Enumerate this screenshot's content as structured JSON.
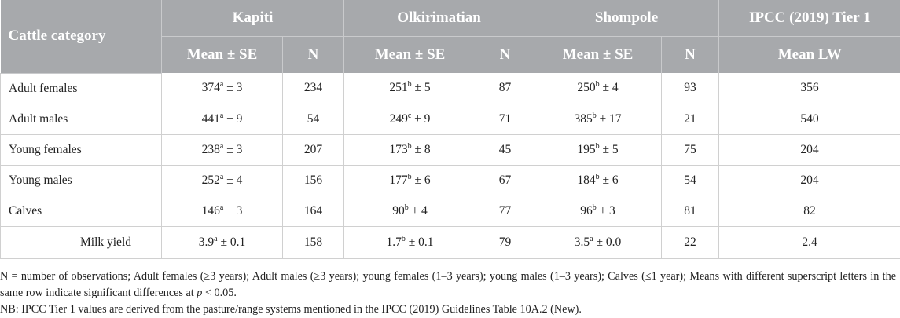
{
  "header": {
    "col_category": "Cattle category",
    "groups": [
      "Kapiti",
      "Olkirimatian",
      "Shompole",
      "IPCC (2019) Tier 1"
    ],
    "sub_mean_se": "Mean ± SE",
    "sub_n": "N",
    "sub_mean_lw": "Mean LW"
  },
  "rows": [
    {
      "category": "Adult females",
      "k_val": "374",
      "k_sup": "a",
      "k_se": " ± 3",
      "k_n": "234",
      "o_val": "251",
      "o_sup": "b",
      "o_se": " ± 5",
      "o_n": "87",
      "s_val": "250",
      "s_sup": "b",
      "s_se": " ± 4",
      "s_n": "93",
      "ipcc": "356"
    },
    {
      "category": "Adult males",
      "k_val": "441",
      "k_sup": "a",
      "k_se": " ± 9",
      "k_n": "54",
      "o_val": "249",
      "o_sup": "c",
      "o_se": " ± 9",
      "o_n": "71",
      "s_val": "385",
      "s_sup": "b",
      "s_se": " ± 17",
      "s_n": "21",
      "ipcc": "540"
    },
    {
      "category": "Young females",
      "k_val": "238",
      "k_sup": "a",
      "k_se": " ± 3",
      "k_n": "207",
      "o_val": "173",
      "o_sup": "b",
      "o_se": " ± 8",
      "o_n": "45",
      "s_val": "195",
      "s_sup": "b",
      "s_se": " ± 5",
      "s_n": "75",
      "ipcc": "204"
    },
    {
      "category": "Young males",
      "k_val": "252",
      "k_sup": "a",
      "k_se": " ± 4",
      "k_n": "156",
      "o_val": "177",
      "o_sup": "b",
      "o_se": " ± 6",
      "o_n": "67",
      "s_val": "184",
      "s_sup": "b",
      "s_se": " ± 6",
      "s_n": "54",
      "ipcc": "204"
    },
    {
      "category": "Calves",
      "k_val": "146",
      "k_sup": "a",
      "k_se": " ± 3",
      "k_n": "164",
      "o_val": "90",
      "o_sup": "b",
      "o_se": " ± 4",
      "o_n": "77",
      "s_val": "96",
      "s_sup": "b",
      "s_se": " ± 3",
      "s_n": "81",
      "ipcc": "82"
    },
    {
      "category": "Milk yield",
      "k_val": "3.9",
      "k_sup": "a",
      "k_se": " ± 0.1",
      "k_n": "158",
      "o_val": "1.7",
      "o_sup": "b",
      "o_se": " ± 0.1",
      "o_n": "79",
      "s_val": "3.5",
      "s_sup": "a",
      "s_se": " ± 0.0",
      "s_n": "22",
      "ipcc": "2.4"
    }
  ],
  "notes": {
    "n1_a": "N = number of observations; Adult females (≥3 years); Adult males (≥3 years); young females (1–3 years); young males (1–3 years); Calves (≤1 year); Means with different superscript letters in the same row indicate significant differences at ",
    "n1_p": "p",
    "n1_b": " < 0.05.",
    "n2": "NB: IPCC Tier 1 values are derived from the pasture/range systems mentioned in the IPCC (2019) Guidelines Table 10A.2 (New)."
  }
}
